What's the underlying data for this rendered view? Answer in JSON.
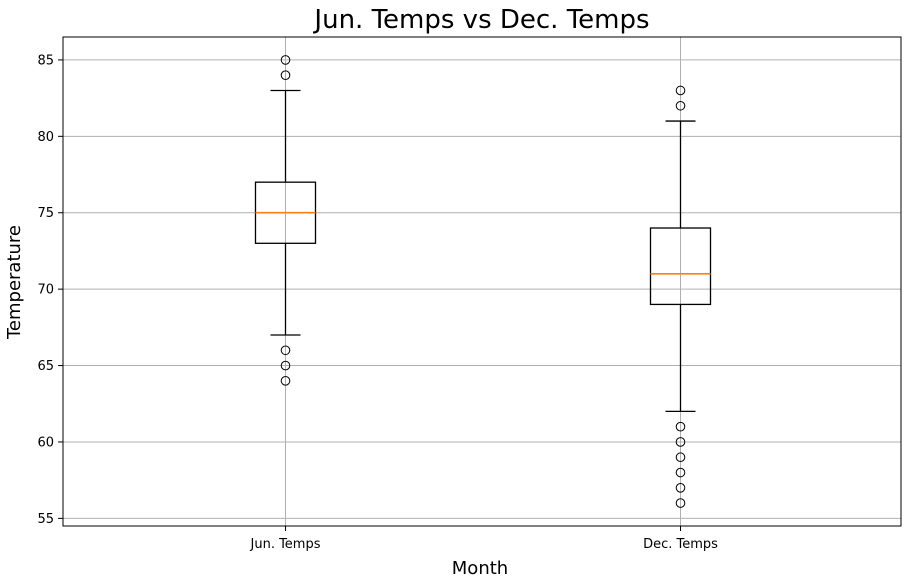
{
  "chart_data": {
    "type": "box",
    "title": "Jun. Temps vs Dec. Temps",
    "xlabel": "Month",
    "ylabel": "Temperature",
    "ylim": [
      54.5,
      86.5
    ],
    "yticks": [
      55,
      60,
      65,
      70,
      75,
      80,
      85
    ],
    "grid": true,
    "median_color": "#ff7f0e",
    "categories": [
      "Jun. Temps",
      "Dec. Temps"
    ],
    "boxes": [
      {
        "category": "Jun. Temps",
        "whisker_low": 67,
        "q1": 73,
        "median": 75,
        "q3": 77,
        "whisker_high": 83,
        "fliers": [
          64,
          65,
          66,
          84,
          85
        ]
      },
      {
        "category": "Dec. Temps",
        "whisker_low": 62,
        "q1": 69,
        "median": 71,
        "q3": 74,
        "whisker_high": 81,
        "fliers": [
          56,
          57,
          58,
          59,
          60,
          61,
          82,
          83
        ]
      }
    ]
  }
}
